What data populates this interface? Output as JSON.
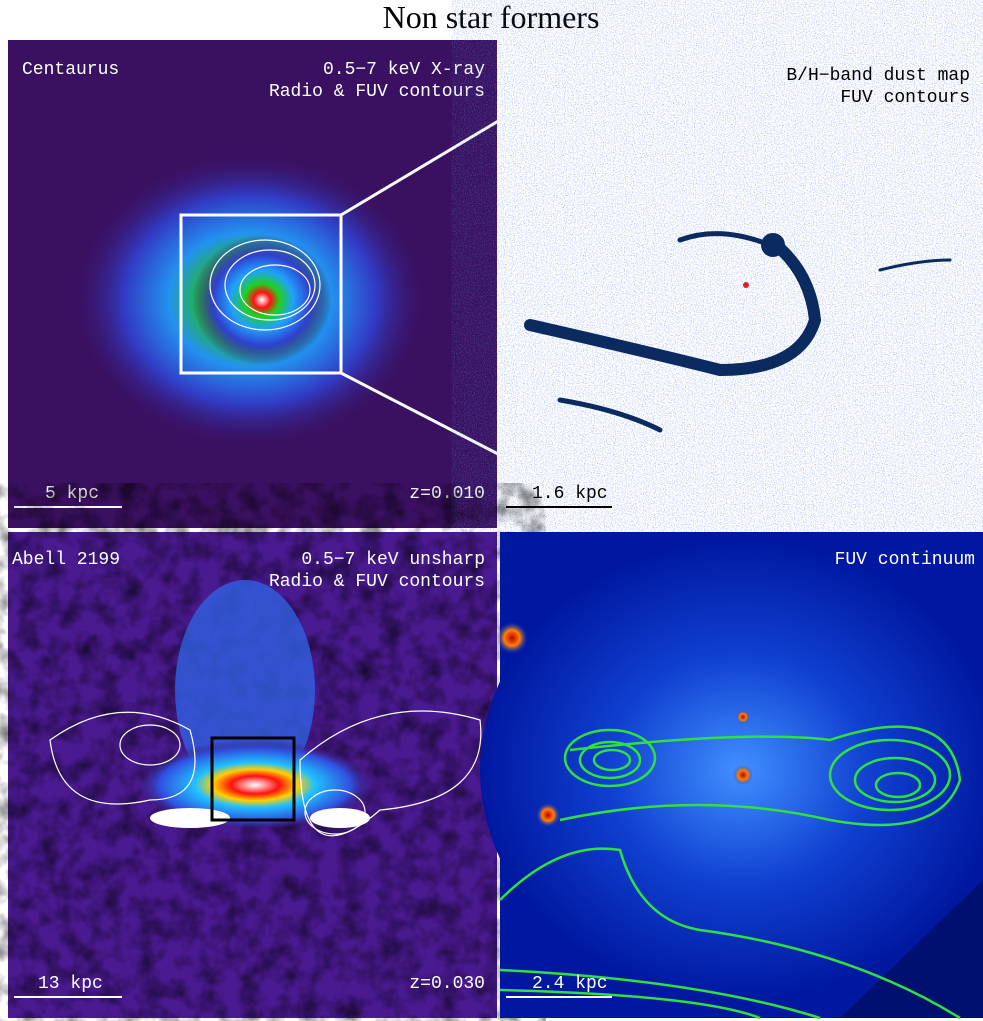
{
  "title": "Non star formers",
  "panels": [
    {
      "name": "Centaurus",
      "band": "0.5−7 keV X-ray",
      "contours": "Radio & FUV contours",
      "scale": "5 kpc",
      "redshift": "z=0.010"
    },
    {
      "band": "B/H−band dust map",
      "contours": "FUV contours",
      "scale": "1.6 kpc"
    },
    {
      "name": "Abell 2199",
      "band": "0.5−7 keV unsharp",
      "contours": "Radio & FUV contours",
      "scale": "13 kpc",
      "redshift": "z=0.030"
    },
    {
      "band": "FUV continuum",
      "scale": "2.4 kpc"
    }
  ]
}
